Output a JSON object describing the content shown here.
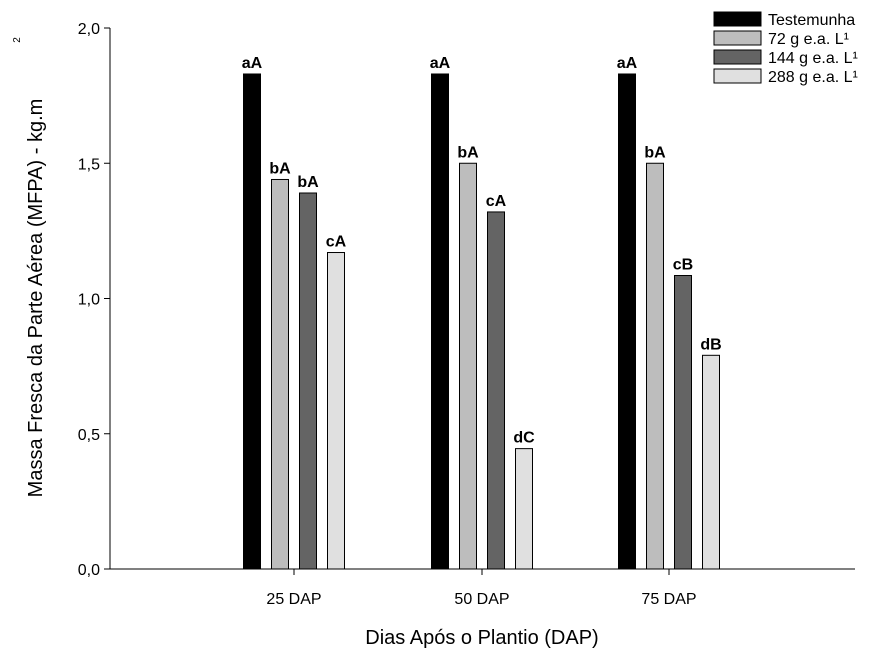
{
  "chart_data": {
    "type": "bar",
    "categories": [
      "25 DAP",
      "50 DAP",
      "75 DAP"
    ],
    "series": [
      {
        "name": "Testemunha",
        "color": "#000000",
        "values": [
          1.83,
          1.83,
          1.83
        ],
        "labels": [
          "aA",
          "aA",
          "aA"
        ]
      },
      {
        "name": "72 g e.a. L¹",
        "color": "#bdbdbd",
        "values": [
          1.44,
          1.5,
          1.5
        ],
        "labels": [
          "bA",
          "bA",
          "bA"
        ]
      },
      {
        "name": "144 g e.a. L¹",
        "color": "#646464",
        "values": [
          1.39,
          1.32,
          1.085
        ],
        "labels": [
          "bA",
          "cA",
          "cB"
        ]
      },
      {
        "name": "288 g e.a. L¹",
        "color": "#e0e0e0",
        "values": [
          1.17,
          0.445,
          0.79
        ],
        "labels": [
          "cA",
          "dC",
          "dB"
        ]
      }
    ],
    "yticks": [
      "0,0",
      "0,5",
      "1,0",
      "1,5",
      "2,0"
    ],
    "ytick_values": [
      0,
      0.5,
      1.0,
      1.5,
      2.0
    ],
    "ylim": [
      0,
      2.0
    ],
    "xlabel": "Dias Após o Plantio (DAP)",
    "ylabel": "Massa Fresca da Parte Aérea (MFPA) - kg.m",
    "ylabel_superscript": "2",
    "legend_position": "top-right",
    "grid": false
  }
}
